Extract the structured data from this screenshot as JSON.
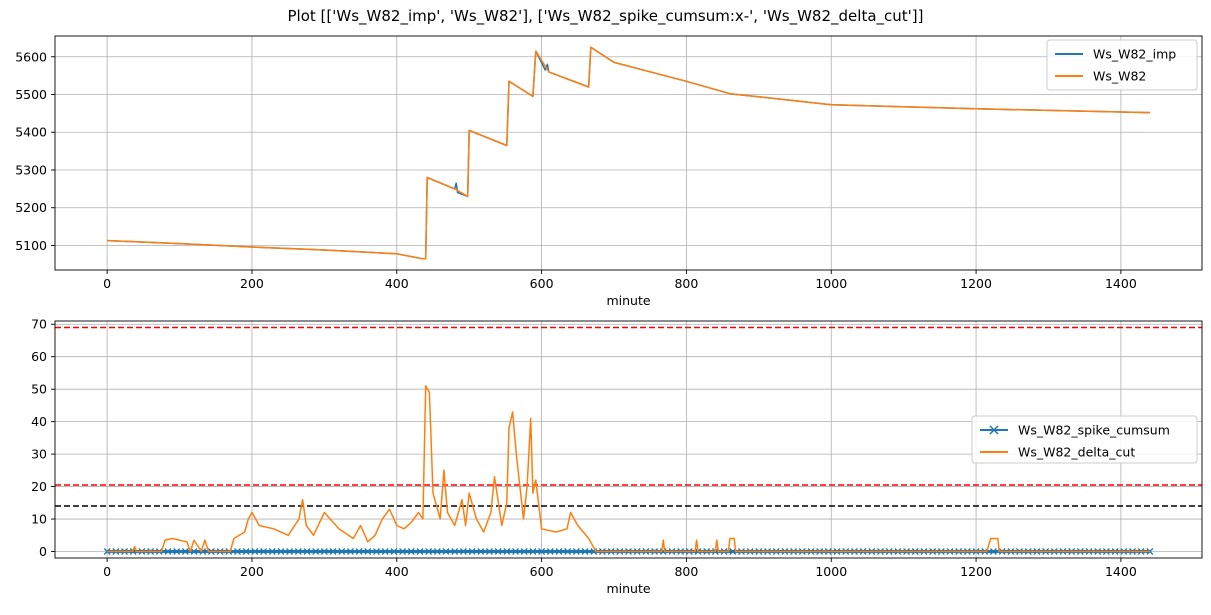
{
  "figure": {
    "title": "Plot [['Ws_W82_imp', 'Ws_W82'], ['Ws_W82_spike_cumsum:x-', 'Ws_W82_delta_cut']]"
  },
  "colors": {
    "blue": "#1f77b4",
    "orange": "#ff7f0e",
    "red_line": "#ff0000",
    "black_line": "#000000",
    "grid": "#b0b0b0"
  },
  "chart_data": [
    {
      "type": "line",
      "xlabel": "minute",
      "ylabel": "",
      "xlim": [
        -72,
        1512
      ],
      "ylim": [
        5035,
        5655
      ],
      "xticks": [
        0,
        200,
        400,
        600,
        800,
        1000,
        1200,
        1400
      ],
      "yticks": [
        5100,
        5200,
        5300,
        5400,
        5500,
        5600
      ],
      "grid": true,
      "legend_position": "upper right",
      "series": [
        {
          "name": "Ws_W82_imp",
          "color": "#1f77b4",
          "x": [
            0,
            100,
            200,
            300,
            400,
            435,
            440,
            442,
            480,
            482,
            484,
            498,
            500,
            552,
            555,
            588,
            592,
            605,
            608,
            610,
            665,
            668,
            700,
            800,
            860,
            1000,
            1200,
            1440
          ],
          "y": [
            5113,
            5105,
            5096,
            5088,
            5078,
            5065,
            5065,
            5280,
            5250,
            5265,
            5240,
            5230,
            5405,
            5365,
            5535,
            5495,
            5615,
            5565,
            5580,
            5560,
            5520,
            5625,
            5585,
            5535,
            5502,
            5473,
            5462,
            5452
          ]
        },
        {
          "name": "Ws_W82",
          "color": "#ff7f0e",
          "x": [
            0,
            100,
            200,
            300,
            400,
            435,
            440,
            442,
            480,
            498,
            500,
            552,
            555,
            588,
            592,
            610,
            665,
            668,
            700,
            800,
            860,
            1000,
            1200,
            1440
          ],
          "y": [
            5113,
            5105,
            5096,
            5088,
            5078,
            5065,
            5065,
            5280,
            5250,
            5230,
            5405,
            5365,
            5535,
            5495,
            5615,
            5560,
            5520,
            5625,
            5585,
            5535,
            5502,
            5473,
            5462,
            5452
          ]
        }
      ]
    },
    {
      "type": "line",
      "xlabel": "minute",
      "ylabel": "",
      "xlim": [
        -72,
        1512
      ],
      "ylim": [
        -2,
        71
      ],
      "xticks": [
        0,
        200,
        400,
        600,
        800,
        1000,
        1200,
        1400
      ],
      "yticks": [
        0,
        10,
        20,
        30,
        40,
        50,
        60,
        70
      ],
      "grid": true,
      "legend_position": "center right",
      "hlines": [
        {
          "y": 69,
          "color": "#ff0000",
          "style": "dashed"
        },
        {
          "y": 20.5,
          "color": "#ff0000",
          "style": "dashed"
        },
        {
          "y": 14,
          "color": "#000000",
          "style": "dashed"
        }
      ],
      "series": [
        {
          "name": "Ws_W82_spike_cumsum",
          "color": "#1f77b4",
          "marker": "x",
          "x": [
            0,
            1440
          ],
          "y": [
            0,
            0
          ]
        },
        {
          "name": "Ws_W82_delta_cut",
          "color": "#ff7f0e",
          "x": [
            0,
            35,
            38,
            40,
            75,
            80,
            90,
            100,
            110,
            115,
            120,
            130,
            135,
            140,
            170,
            175,
            190,
            195,
            200,
            210,
            230,
            250,
            265,
            270,
            275,
            285,
            300,
            320,
            340,
            350,
            360,
            370,
            380,
            390,
            400,
            410,
            420,
            430,
            436,
            440,
            445,
            450,
            460,
            465,
            470,
            480,
            490,
            495,
            500,
            510,
            520,
            530,
            535,
            545,
            552,
            555,
            560,
            565,
            575,
            580,
            585,
            588,
            592,
            600,
            620,
            635,
            640,
            650,
            665,
            675,
            690,
            766,
            768,
            770,
            812,
            814,
            816,
            840,
            842,
            844,
            858,
            860,
            866,
            868,
            1215,
            1220,
            1230,
            1232,
            1440
          ],
          "y": [
            0,
            0,
            1.5,
            0,
            0,
            3.5,
            4,
            3.5,
            3,
            0,
            3.5,
            0,
            3.5,
            0,
            0,
            4,
            6,
            10,
            12,
            8,
            7,
            5,
            10,
            16,
            8,
            5,
            12,
            7,
            4,
            8,
            3,
            5,
            10,
            13,
            8,
            7,
            9,
            12,
            10,
            51,
            49,
            18,
            10,
            25,
            12,
            8,
            16,
            8,
            18,
            10,
            6,
            12,
            23,
            8,
            15,
            38,
            43,
            30,
            10,
            20,
            41,
            18,
            22,
            7,
            6,
            7,
            12,
            8,
            4,
            0,
            0,
            0,
            3.5,
            0,
            0,
            3.5,
            0,
            0,
            3.5,
            0,
            0,
            4,
            4,
            0,
            0,
            4,
            4,
            0,
            0
          ]
        }
      ]
    }
  ]
}
